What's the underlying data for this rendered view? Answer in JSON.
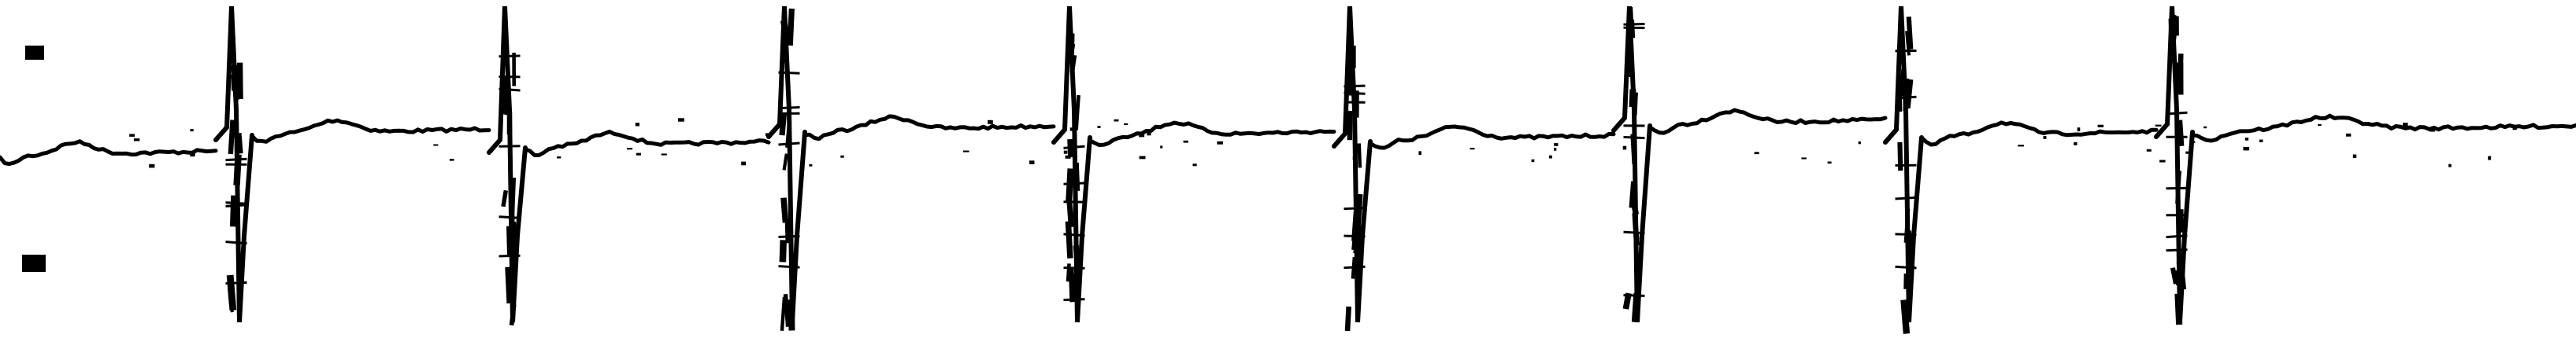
{
  "image": {
    "kind": "scanned ECG rhythm strip",
    "background": "#ffffff",
    "ink_color": "#000000"
  },
  "strip": {
    "beats": 8,
    "markers_top": 1,
    "markers_bottom": 1
  }
}
